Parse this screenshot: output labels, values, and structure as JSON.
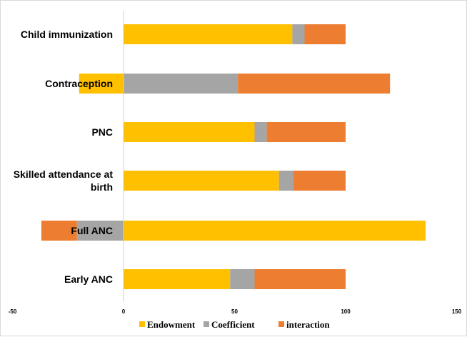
{
  "chart_data": {
    "type": "bar",
    "orientation": "horizontal",
    "stacked": true,
    "title": "",
    "xlabel": "",
    "ylabel": "",
    "xlim": [
      -50,
      150
    ],
    "x_ticks": [
      "-50",
      "0",
      "50",
      "100",
      "150"
    ],
    "grid": false,
    "legend_position": "bottom",
    "categories": [
      "Child immunization",
      "Contraception",
      "PNC",
      "Skilled attendance at birth",
      "Full ANC",
      "Early ANC"
    ],
    "series": [
      {
        "name": "Endowment",
        "color": "#FFC000",
        "values": [
          76,
          -20,
          59,
          70,
          136,
          48
        ]
      },
      {
        "name": "Coefficient",
        "color": "#A5A5A5",
        "values": [
          5.5,
          51.5,
          5.5,
          6.5,
          -21,
          11
        ]
      },
      {
        "name": "interaction",
        "color": "#ED7D31",
        "values": [
          18.5,
          68.5,
          35.5,
          23.5,
          -16,
          41
        ]
      }
    ]
  }
}
